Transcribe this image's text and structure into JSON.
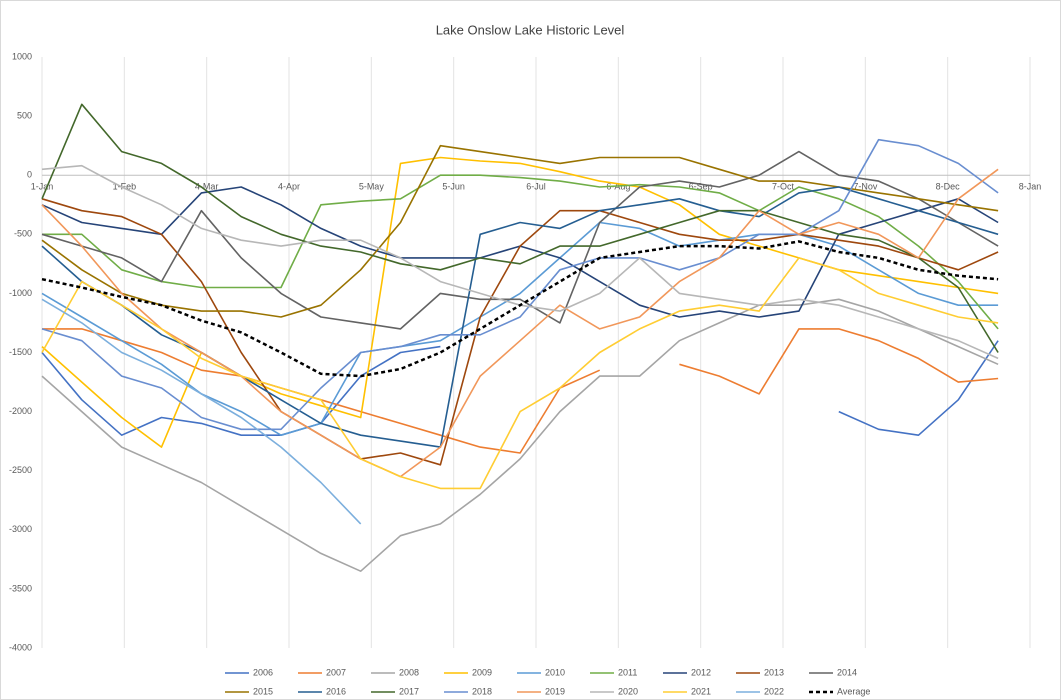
{
  "chart_data": {
    "type": "line",
    "title": "Lake Onslow Lake Historic Level",
    "x": [
      0,
      15,
      30,
      45,
      60,
      75,
      90,
      105,
      120,
      135,
      150,
      165,
      180,
      195,
      210,
      225,
      240,
      255,
      270,
      285,
      300,
      315,
      330,
      345,
      360
    ],
    "xlim": [
      0,
      372
    ],
    "xticks": [
      {
        "value": 0,
        "label": "1-Jan"
      },
      {
        "value": 31,
        "label": "1-Feb"
      },
      {
        "value": 62,
        "label": "4-Mar"
      },
      {
        "value": 93,
        "label": "4-Apr"
      },
      {
        "value": 124,
        "label": "5-May"
      },
      {
        "value": 155,
        "label": "5-Jun"
      },
      {
        "value": 186,
        "label": "6-Jul"
      },
      {
        "value": 217,
        "label": "6-Aug"
      },
      {
        "value": 248,
        "label": "6-Sep"
      },
      {
        "value": 279,
        "label": "7-Oct"
      },
      {
        "value": 310,
        "label": "7-Nov"
      },
      {
        "value": 341,
        "label": "8-Dec"
      },
      {
        "value": 372,
        "label": "8-Jan"
      }
    ],
    "ylim": [
      -4000,
      1000
    ],
    "yticks": [
      1000,
      500,
      0,
      -500,
      -1000,
      -1500,
      -2000,
      -2500,
      -3000,
      -3500,
      -4000
    ],
    "grid": "x",
    "legend": "bottom",
    "series": [
      {
        "name": "2006",
        "color": "#4472c4",
        "values": [
          -1500,
          -1900,
          -2200,
          -2050,
          -2100,
          -2200,
          -2200,
          -2100,
          -1700,
          -1500,
          -1450,
          null,
          null,
          null,
          null,
          null,
          null,
          null,
          null,
          null,
          -2000,
          -2150,
          -2200,
          -1900,
          -1400
        ]
      },
      {
        "name": "2007",
        "color": "#ed7d31",
        "values": [
          -1300,
          -1300,
          -1400,
          -1500,
          -1650,
          -1700,
          -1800,
          -1900,
          -2000,
          -2100,
          -2200,
          -2300,
          -2350,
          -1800,
          -1650,
          null,
          -1600,
          -1700,
          -1850,
          -1300,
          -1300,
          -1400,
          -1550,
          -1750,
          -1720
        ]
      },
      {
        "name": "2008",
        "color": "#a5a5a5",
        "values": [
          -1700,
          -2000,
          -2300,
          -2450,
          -2600,
          -2800,
          -3000,
          -3200,
          -3350,
          -3050,
          -2950,
          -2700,
          -2400,
          -2000,
          -1700,
          -1700,
          -1400,
          -1250,
          -1100,
          -1100,
          -1050,
          -1150,
          -1300,
          -1450,
          -1600
        ]
      },
      {
        "name": "2009",
        "color": "#ffc000",
        "values": [
          -1450,
          -1750,
          -2050,
          -2300,
          -1500,
          -1700,
          -1850,
          -1950,
          -2050,
          100,
          150,
          120,
          100,
          30,
          -50,
          -100,
          -250,
          -500,
          -600,
          -700,
          -800,
          -850,
          -900,
          -950,
          -1000
        ]
      },
      {
        "name": "2010",
        "color": "#5b9bd5",
        "values": [
          -1000,
          -1200,
          -1400,
          -1600,
          -1850,
          -2000,
          -2200,
          -2100,
          -1500,
          -1450,
          -1400,
          -1200,
          -1000,
          -700,
          -400,
          -450,
          -600,
          -550,
          -500,
          -500,
          -600,
          -800,
          -1000,
          -1100,
          -1100
        ]
      },
      {
        "name": "2011",
        "color": "#70ad47",
        "values": [
          -500,
          -500,
          -800,
          -900,
          -950,
          -950,
          -950,
          -250,
          -220,
          -200,
          0,
          0,
          -20,
          -50,
          -100,
          -80,
          -100,
          -150,
          -300,
          -100,
          -200,
          -350,
          -600,
          -900,
          -1300
        ]
      },
      {
        "name": "2012",
        "color": "#264478",
        "values": [
          -250,
          -400,
          -450,
          -500,
          -150,
          -100,
          -250,
          -450,
          -600,
          -700,
          -700,
          -700,
          -600,
          -700,
          -900,
          -1100,
          -1200,
          -1150,
          -1200,
          -1150,
          -500,
          -400,
          -300,
          -200,
          -400
        ]
      },
      {
        "name": "2013",
        "color": "#9e480e",
        "values": [
          -200,
          -300,
          -350,
          -500,
          -900,
          -1500,
          -2000,
          -2200,
          -2400,
          -2350,
          -2450,
          -1200,
          -600,
          -300,
          -300,
          -400,
          -500,
          -550,
          -550,
          -500,
          -550,
          -600,
          -700,
          -800,
          -650
        ]
      },
      {
        "name": "2014",
        "color": "#636363",
        "values": [
          -500,
          -600,
          -700,
          -900,
          -300,
          -700,
          -1000,
          -1200,
          -1250,
          -1300,
          -1000,
          -1050,
          -1050,
          -1250,
          -400,
          -100,
          -50,
          -100,
          0,
          200,
          0,
          -50,
          -200,
          -400,
          -600
        ]
      },
      {
        "name": "2015",
        "color": "#997300",
        "values": [
          -550,
          -800,
          -1000,
          -1100,
          -1150,
          -1150,
          -1200,
          -1100,
          -800,
          -400,
          250,
          200,
          150,
          100,
          150,
          150,
          150,
          50,
          -50,
          -50,
          -100,
          -150,
          -200,
          -250,
          -300
        ]
      },
      {
        "name": "2016",
        "color": "#255e91",
        "values": [
          -600,
          -900,
          -1100,
          -1350,
          -1500,
          -1700,
          -1900,
          -2100,
          -2200,
          -2250,
          -2300,
          -500,
          -400,
          -450,
          -300,
          -250,
          -200,
          -300,
          -350,
          -150,
          -100,
          -200,
          -300,
          -400,
          -500
        ]
      },
      {
        "name": "2017",
        "color": "#43682b",
        "values": [
          -200,
          600,
          200,
          100,
          -100,
          -350,
          -500,
          -600,
          -650,
          -750,
          -800,
          -700,
          -750,
          -600,
          -600,
          -500,
          -400,
          -300,
          -300,
          -400,
          -500,
          -550,
          -700,
          -950,
          -1500
        ]
      },
      {
        "name": "2018",
        "color": "#698ed0",
        "values": [
          -1300,
          -1400,
          -1700,
          -1800,
          -2050,
          -2150,
          -2150,
          -1800,
          -1500,
          -1450,
          -1350,
          -1350,
          -1200,
          -800,
          -700,
          -700,
          -800,
          -700,
          -500,
          -500,
          -300,
          300,
          250,
          100,
          -150
        ]
      },
      {
        "name": "2019",
        "color": "#f1975a",
        "values": [
          -250,
          -600,
          -1000,
          -1300,
          -1500,
          -1700,
          -2000,
          -2200,
          -2400,
          -2550,
          -2300,
          -1700,
          -1400,
          -1100,
          -1300,
          -1200,
          -900,
          -700,
          -300,
          -500,
          -400,
          -500,
          -700,
          -200,
          50
        ]
      },
      {
        "name": "2020",
        "color": "#b7b7b7",
        "values": [
          50,
          80,
          -100,
          -250,
          -450,
          -550,
          -600,
          -550,
          -550,
          -700,
          -900,
          -1000,
          -1100,
          -1150,
          -1000,
          -700,
          -1000,
          -1050,
          -1100,
          -1050,
          -1100,
          -1200,
          -1300,
          -1400,
          -1550
        ]
      },
      {
        "name": "2021",
        "color": "#ffcd33",
        "values": [
          -1500,
          -900,
          -1100,
          -1300,
          -1550,
          -1700,
          -1800,
          -1900,
          -2400,
          -2550,
          -2650,
          -2650,
          -2000,
          -1800,
          -1500,
          -1300,
          -1150,
          -1100,
          -1150,
          -700,
          -800,
          -1000,
          -1100,
          -1200,
          -1250
        ]
      },
      {
        "name": "2022",
        "color": "#7cafdd",
        "values": [
          -1050,
          -1250,
          -1500,
          -1650,
          -1850,
          -2050,
          -2300,
          -2600,
          -2950,
          null,
          null,
          null,
          null,
          null,
          null,
          null,
          null,
          null,
          null,
          null,
          null,
          null,
          null,
          null,
          null
        ]
      },
      {
        "name": "Average",
        "color": "#000000",
        "style": "dashed",
        "values": [
          -880,
          -950,
          -1030,
          -1100,
          -1230,
          -1330,
          -1500,
          -1680,
          -1700,
          -1640,
          -1500,
          -1300,
          -1100,
          -900,
          -700,
          -650,
          -600,
          -600,
          -620,
          -560,
          -650,
          -700,
          -800,
          -850,
          -880
        ]
      }
    ]
  }
}
